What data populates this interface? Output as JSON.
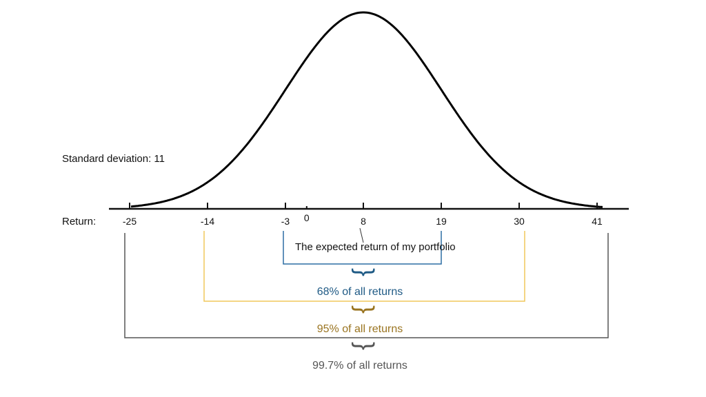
{
  "std_label": "Standard deviation: 11",
  "return_label": "Return:",
  "mean": 8,
  "std": 11,
  "ticks": [
    "-25",
    "-14",
    "-3",
    "0",
    "8",
    "19",
    "30",
    "41"
  ],
  "annotation": "The expected return of my portfolio",
  "ranges": [
    {
      "label": "68% of all returns",
      "from": -3,
      "to": 19,
      "color": "#2b6da3",
      "text_color": "#1f5a85"
    },
    {
      "label": "95% of all returns",
      "from": -14,
      "to": 30,
      "color": "#f0c75a",
      "text_color": "#9a7420"
    },
    {
      "label": "99.7% of all returns",
      "from": -25,
      "to": 41,
      "color": "#555555",
      "text_color": "#555555"
    }
  ],
  "brace_glyph": "}"
}
